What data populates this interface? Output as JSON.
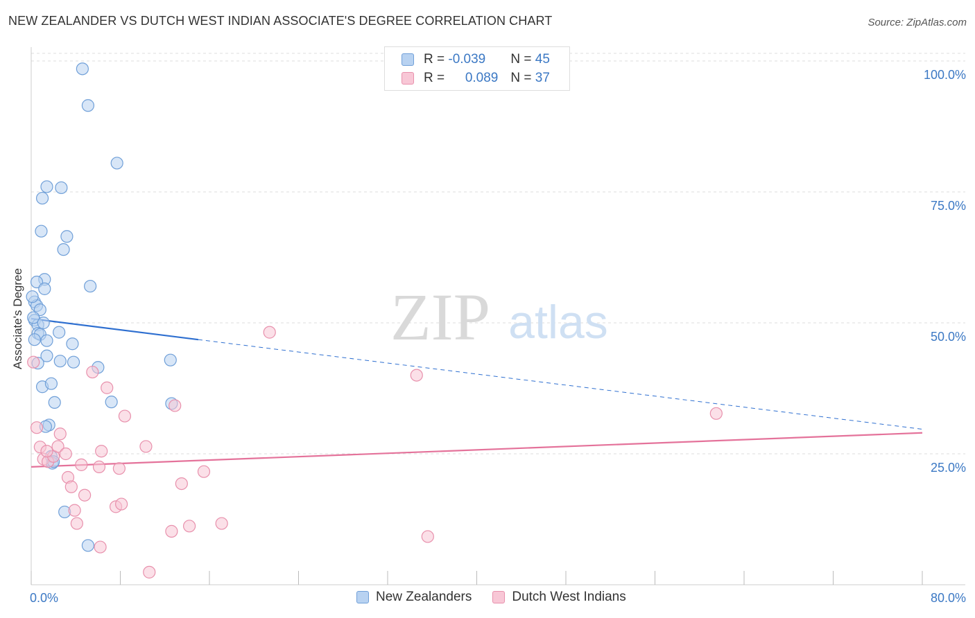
{
  "title": "NEW ZEALANDER VS DUTCH WEST INDIAN ASSOCIATE'S DEGREE CORRELATION CHART",
  "source": "Source: ZipAtlas.com",
  "watermark": {
    "zip": "ZIP",
    "atlas": "atlas"
  },
  "colors": {
    "blue_fill": "#b8d2f1",
    "blue_stroke": "#6f9fd8",
    "blue_line": "#2e6fd0",
    "pink_fill": "#f8c7d6",
    "pink_stroke": "#e890ac",
    "pink_line": "#e4729a",
    "tick_label": "#3b78c4",
    "grid": "#dddddd"
  },
  "legend": {
    "rows": [
      {
        "r_label": "R = ",
        "r_value": "-0.039",
        "n_label": "N = ",
        "n_value": "45"
      },
      {
        "r_label": "R = ",
        "r_value": "0.089",
        "n_label": "N = ",
        "n_value": "37"
      }
    ]
  },
  "chart_data": {
    "type": "scatter",
    "title": "NEW ZEALANDER VS DUTCH WEST INDIAN ASSOCIATE'S DEGREE CORRELATION CHART",
    "xlabel": "",
    "ylabel": "Associate's Degree",
    "xlim": [
      0,
      80
    ],
    "ylim": [
      0,
      100
    ],
    "x_tick_labels": [
      "0.0%",
      "80.0%"
    ],
    "y_ticks": [
      25,
      50,
      75,
      100
    ],
    "y_tick_labels": [
      "25.0%",
      "50.0%",
      "75.0%",
      "100.0%"
    ],
    "grid": true,
    "series": [
      {
        "name": "New Zealanders",
        "color": "blue",
        "points": [
          [
            4.6,
            98.5
          ],
          [
            5.1,
            91.5
          ],
          [
            7.7,
            80.5
          ],
          [
            1.4,
            76.0
          ],
          [
            2.7,
            75.8
          ],
          [
            1.0,
            73.8
          ],
          [
            0.9,
            67.5
          ],
          [
            3.2,
            66.5
          ],
          [
            2.9,
            64.0
          ],
          [
            5.3,
            57.0
          ],
          [
            1.2,
            58.3
          ],
          [
            0.5,
            57.8
          ],
          [
            1.2,
            56.5
          ],
          [
            0.3,
            54.0
          ],
          [
            0.5,
            53.3
          ],
          [
            0.8,
            52.5
          ],
          [
            0.3,
            50.5
          ],
          [
            0.6,
            49.6
          ],
          [
            0.6,
            48.0
          ],
          [
            0.8,
            47.8
          ],
          [
            2.5,
            48.2
          ],
          [
            0.3,
            46.8
          ],
          [
            1.4,
            46.6
          ],
          [
            3.7,
            46.0
          ],
          [
            1.4,
            43.7
          ],
          [
            0.6,
            42.3
          ],
          [
            2.6,
            42.7
          ],
          [
            3.8,
            42.5
          ],
          [
            6.0,
            41.5
          ],
          [
            12.5,
            42.9
          ],
          [
            1.0,
            37.8
          ],
          [
            1.8,
            38.4
          ],
          [
            2.1,
            34.8
          ],
          [
            7.2,
            34.9
          ],
          [
            12.6,
            34.6
          ],
          [
            1.6,
            30.5
          ],
          [
            1.3,
            30.2
          ],
          [
            1.8,
            24.5
          ],
          [
            1.9,
            23.2
          ],
          [
            3.0,
            13.9
          ],
          [
            5.1,
            7.5
          ],
          [
            2.0,
            23.5
          ],
          [
            0.2,
            51.0
          ],
          [
            0.1,
            55.0
          ],
          [
            1.1,
            50.0
          ]
        ],
        "trend": {
          "x": [
            0,
            15
          ],
          "y": [
            50.8,
            46.8
          ],
          "dashed_to": [
            80,
            29.7
          ]
        }
      },
      {
        "name": "Dutch West Indians",
        "color": "pink",
        "points": [
          [
            0.2,
            42.5
          ],
          [
            0.5,
            30.0
          ],
          [
            0.8,
            26.3
          ],
          [
            1.1,
            24.0
          ],
          [
            1.5,
            23.5
          ],
          [
            2.0,
            24.5
          ],
          [
            2.4,
            26.4
          ],
          [
            2.6,
            28.8
          ],
          [
            3.1,
            25.0
          ],
          [
            3.3,
            20.5
          ],
          [
            3.6,
            18.7
          ],
          [
            3.9,
            14.2
          ],
          [
            4.1,
            11.7
          ],
          [
            4.5,
            22.9
          ],
          [
            4.8,
            17.1
          ],
          [
            5.5,
            40.6
          ],
          [
            6.1,
            22.5
          ],
          [
            6.2,
            7.2
          ],
          [
            6.3,
            25.5
          ],
          [
            6.8,
            37.6
          ],
          [
            7.6,
            14.9
          ],
          [
            7.9,
            22.2
          ],
          [
            8.1,
            15.4
          ],
          [
            8.4,
            32.2
          ],
          [
            10.3,
            26.4
          ],
          [
            10.6,
            2.4
          ],
          [
            12.6,
            10.2
          ],
          [
            12.9,
            34.2
          ],
          [
            13.5,
            19.3
          ],
          [
            14.2,
            11.2
          ],
          [
            15.5,
            21.6
          ],
          [
            17.1,
            11.7
          ],
          [
            21.4,
            48.2
          ],
          [
            34.6,
            40.0
          ],
          [
            35.6,
            9.2
          ],
          [
            61.5,
            32.7
          ],
          [
            1.4,
            25.5
          ]
        ],
        "trend": {
          "x": [
            0,
            80
          ],
          "y": [
            22.5,
            29.0
          ]
        }
      }
    ]
  },
  "bottom_legend": [
    "New Zealanders",
    "Dutch West Indians"
  ]
}
